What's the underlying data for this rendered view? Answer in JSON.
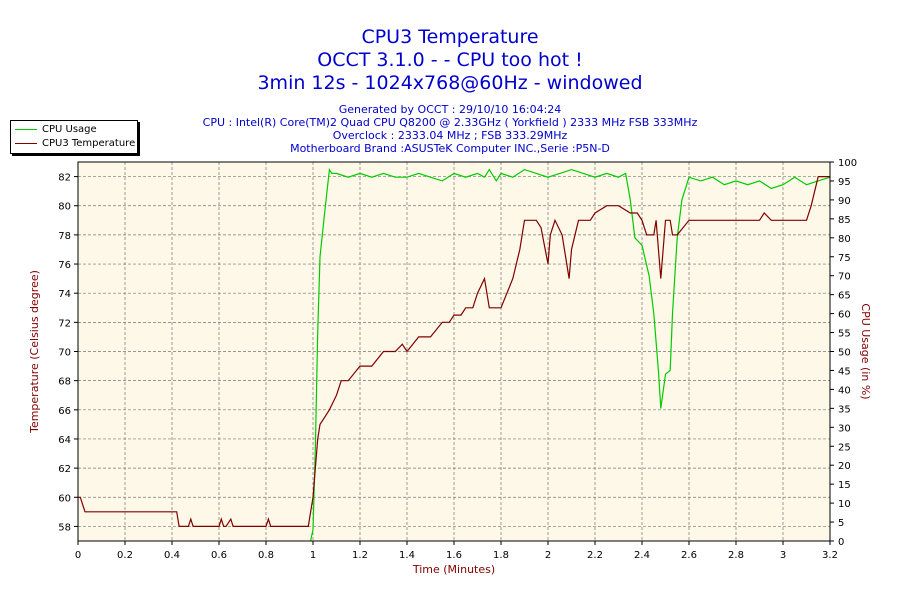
{
  "title": {
    "line1": "CPU3 Temperature",
    "line2": "OCCT 3.1.0 -  - CPU too hot !",
    "line3": "3min 12s - 1024x768@60Hz - windowed"
  },
  "info": {
    "generated": "Generated by OCCT : 29/10/10 16:04:24",
    "cpu": "CPU : Intel(R) Core(TM)2 Quad CPU Q8200 @ 2.33GHz ( Yorkfield ) 2333 MHz FSB 333MHz",
    "overclock": "Overclock : 2333.04 MHz ; FSB 333.29MHz",
    "motherboard": "Motherboard Brand :ASUSTeK Computer INC.,Serie :P5N-D"
  },
  "colors": {
    "usage": "#00cc00",
    "temp": "#800000",
    "plot_bg": "#fdf8e8",
    "text": "#0000cc"
  },
  "chart_data": {
    "type": "line",
    "xlabel": "Time (Minutes)",
    "ylabel_left": "Temperature (Celsius degree)",
    "ylabel_right": "CPU Usage (in %)",
    "xlim": [
      0,
      3.2
    ],
    "ylim_left": [
      57,
      83
    ],
    "ylim_right": [
      0,
      100
    ],
    "x_ticks": [
      "0",
      "0.2",
      "0.4",
      "0.6",
      "0.8",
      "1",
      "1.2",
      "1.4",
      "1.6",
      "1.8",
      "2",
      "2.2",
      "2.4",
      "2.6",
      "2.8",
      "3",
      "3.2"
    ],
    "y_left_ticks": [
      "58",
      "60",
      "62",
      "64",
      "66",
      "68",
      "70",
      "72",
      "74",
      "76",
      "78",
      "80",
      "82"
    ],
    "y_right_ticks": [
      "0",
      "5",
      "10",
      "15",
      "20",
      "25",
      "30",
      "35",
      "40",
      "45",
      "50",
      "55",
      "60",
      "65",
      "70",
      "75",
      "80",
      "85",
      "90",
      "95",
      "100"
    ],
    "grid": true,
    "legend_position": "top-left",
    "series": [
      {
        "name": "CPU Usage",
        "axis": "right",
        "x": [
          0.99,
          1.0,
          1.01,
          1.02,
          1.03,
          1.05,
          1.07,
          1.08,
          1.1,
          1.15,
          1.2,
          1.25,
          1.3,
          1.35,
          1.4,
          1.45,
          1.5,
          1.55,
          1.6,
          1.65,
          1.7,
          1.73,
          1.75,
          1.78,
          1.8,
          1.85,
          1.9,
          1.95,
          2.0,
          2.05,
          2.1,
          2.15,
          2.2,
          2.25,
          2.3,
          2.33,
          2.35,
          2.37,
          2.4,
          2.43,
          2.45,
          2.47,
          2.48,
          2.5,
          2.52,
          2.53,
          2.55,
          2.57,
          2.6,
          2.65,
          2.7,
          2.75,
          2.8,
          2.85,
          2.9,
          2.95,
          3.0,
          3.05,
          3.1,
          3.15,
          3.2
        ],
        "values": [
          0,
          3,
          25,
          55,
          75,
          87,
          98,
          97,
          97,
          96,
          97,
          96,
          97,
          96,
          96,
          97,
          96,
          95,
          97,
          96,
          97,
          96,
          98,
          95,
          97,
          96,
          98,
          97,
          96,
          97,
          98,
          97,
          96,
          97,
          96,
          97,
          90,
          80,
          78,
          70,
          60,
          45,
          35,
          44,
          45,
          60,
          80,
          90,
          96,
          95,
          96,
          94,
          95,
          94,
          95,
          93,
          94,
          96,
          94,
          95,
          96
        ]
      },
      {
        "name": "CPU3 Temperature",
        "axis": "left",
        "x": [
          0.0,
          0.01,
          0.03,
          0.05,
          0.1,
          0.2,
          0.3,
          0.42,
          0.43,
          0.45,
          0.47,
          0.48,
          0.49,
          0.5,
          0.6,
          0.61,
          0.62,
          0.63,
          0.65,
          0.66,
          0.68,
          0.8,
          0.81,
          0.82,
          0.9,
          0.98,
          1.0,
          1.02,
          1.03,
          1.05,
          1.07,
          1.1,
          1.12,
          1.15,
          1.2,
          1.22,
          1.25,
          1.3,
          1.35,
          1.38,
          1.4,
          1.45,
          1.5,
          1.55,
          1.58,
          1.6,
          1.63,
          1.65,
          1.68,
          1.7,
          1.73,
          1.75,
          1.77,
          1.8,
          1.85,
          1.88,
          1.9,
          1.95,
          1.97,
          2.0,
          2.01,
          2.03,
          2.06,
          2.09,
          2.1,
          2.13,
          2.18,
          2.2,
          2.25,
          2.3,
          2.35,
          2.38,
          2.4,
          2.42,
          2.45,
          2.46,
          2.48,
          2.5,
          2.51,
          2.52,
          2.53,
          2.55,
          2.6,
          2.7,
          2.8,
          2.9,
          2.92,
          2.95,
          3.0,
          3.05,
          3.1,
          3.12,
          3.15,
          3.2
        ],
        "values": [
          60,
          60,
          59,
          59,
          59,
          59,
          59,
          59,
          58,
          58,
          58,
          58.5,
          58,
          58,
          58,
          58.5,
          58,
          58,
          58.5,
          58,
          58,
          58,
          58.5,
          58,
          58,
          58,
          60,
          64,
          65,
          65.5,
          66,
          67,
          68,
          68,
          69,
          69,
          69,
          70,
          70,
          70.5,
          70,
          71,
          71,
          72,
          72,
          72.5,
          72.5,
          73,
          73,
          74,
          75,
          73,
          73,
          73,
          75,
          77,
          79,
          79,
          78.5,
          76,
          78,
          79,
          78,
          75,
          77,
          79,
          79,
          79.5,
          80,
          80,
          79.5,
          79.5,
          79,
          78,
          78,
          79,
          75,
          79,
          79,
          79,
          78,
          78,
          79,
          79,
          79,
          79,
          79.5,
          79,
          79,
          79,
          79,
          80,
          82,
          82
        ]
      }
    ]
  }
}
